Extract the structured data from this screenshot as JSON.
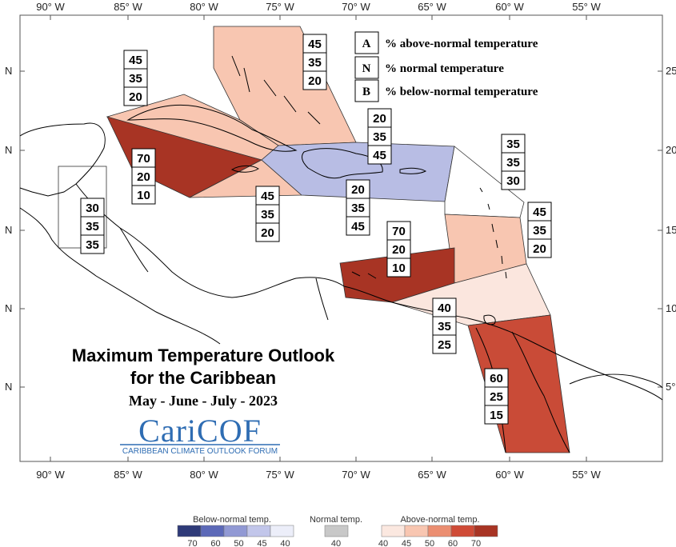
{
  "axes": {
    "lon_top": [
      "90° W",
      "85° W",
      "80° W",
      "75° W",
      "70° W",
      "65° W",
      "60° W",
      "55° W"
    ],
    "lon_bottom": [
      "90° W",
      "85° W",
      "80° W",
      "75° W",
      "70° W",
      "65° W",
      "60° W",
      "55° W"
    ],
    "lat_left": [
      "N",
      "N",
      "N",
      "N",
      "N"
    ],
    "lat_right": [
      "25°",
      "20°",
      "15°",
      "10°",
      "5°"
    ]
  },
  "title": {
    "line1": "Maximum Temperature Outlook",
    "line2": "for the Caribbean",
    "period": "May - June - July - 2023"
  },
  "logo": {
    "name": "CariCOF",
    "subtitle": "CARIBBEAN CLIMATE OUTLOOK FORUM"
  },
  "key": [
    {
      "letter": "A",
      "text": "% above-normal temperature"
    },
    {
      "letter": "N",
      "text": "% normal temperature"
    },
    {
      "letter": "B",
      "text": "% below-normal temperature"
    }
  ],
  "regions": [
    {
      "id": "bahamas",
      "above": "45",
      "normal": "35",
      "below": "20",
      "color": "#f8c6b1"
    },
    {
      "id": "cuba",
      "above": "45",
      "normal": "35",
      "below": "20",
      "color": "#f8c6b1"
    },
    {
      "id": "cayman-jamaica",
      "above": "70",
      "normal": "20",
      "below": "10",
      "color": "#a83424"
    },
    {
      "id": "south-jamaica",
      "above": "45",
      "normal": "35",
      "below": "20",
      "color": "#f8c6b1"
    },
    {
      "id": "hispaniola-pr-top",
      "above": "20",
      "normal": "35",
      "below": "45",
      "color": "#b8bde4"
    },
    {
      "id": "hispaniola-pr-bottom",
      "above": "20",
      "normal": "35",
      "below": "45",
      "color": "#b8bde4"
    },
    {
      "id": "leeward",
      "above": "35",
      "normal": "35",
      "below": "30",
      "color": "#ffffff"
    },
    {
      "id": "belize",
      "above": "30",
      "normal": "35",
      "below": "35",
      "color": "#ffffff"
    },
    {
      "id": "windward",
      "above": "45",
      "normal": "35",
      "below": "20",
      "color": "#f8c6b1"
    },
    {
      "id": "abc-islands",
      "above": "70",
      "normal": "20",
      "below": "10",
      "color": "#a83424"
    },
    {
      "id": "trinidad",
      "above": "40",
      "normal": "35",
      "below": "25",
      "color": "#fbe6de"
    },
    {
      "id": "guianas",
      "above": "60",
      "normal": "25",
      "below": "15",
      "color": "#c94b37"
    }
  ],
  "colorbar": {
    "below_title": "Below-normal temp.",
    "normal_title": "Normal temp.",
    "above_title": "Above-normal temp.",
    "below_colors": [
      "#2e3a78",
      "#5c69b8",
      "#9199d4",
      "#c2c6ea",
      "#eceef9"
    ],
    "below_ticks": [
      "70",
      "60",
      "50",
      "45",
      "40"
    ],
    "normal_color": "#c8c8c8",
    "normal_tick": "40",
    "above_colors": [
      "#fbe8e0",
      "#f8c6b1",
      "#eb8e71",
      "#cf4b37",
      "#a83424"
    ],
    "above_ticks": [
      "40",
      "45",
      "50",
      "60",
      "70"
    ]
  }
}
